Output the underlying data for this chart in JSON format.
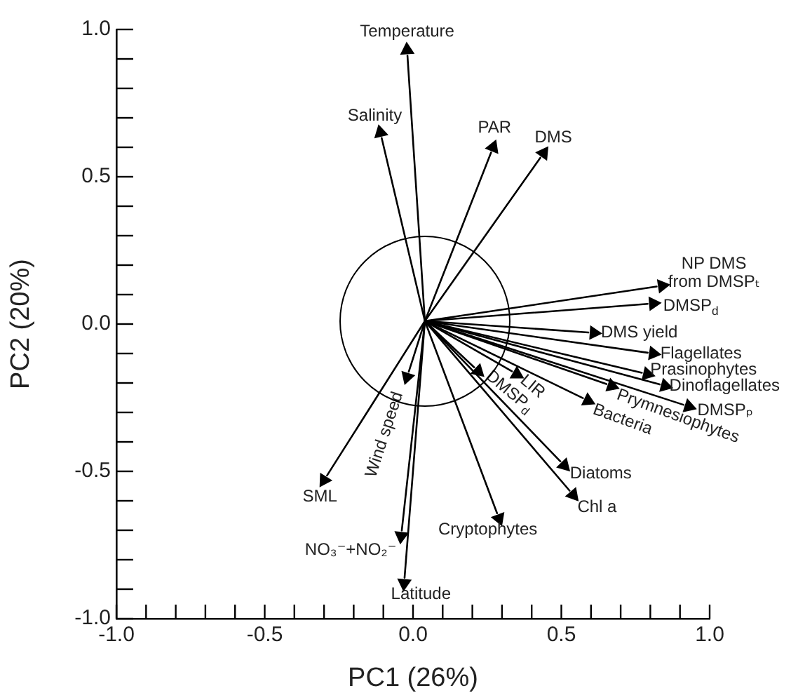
{
  "chart_data": {
    "type": "scatter",
    "xlabel": "PC1 (26%)",
    "ylabel": "PC2 (20%)",
    "xlim": [
      -1,
      1
    ],
    "ylim": [
      -1,
      1
    ],
    "xticks": [
      {
        "value": -1,
        "label": "-1.0"
      },
      {
        "value": -0.9,
        "label": null
      },
      {
        "value": -0.8,
        "label": null
      },
      {
        "value": -0.7,
        "label": null
      },
      {
        "value": -0.6,
        "label": null
      },
      {
        "value": -0.5,
        "label": "-0.5"
      },
      {
        "value": -0.4,
        "label": null
      },
      {
        "value": -0.3,
        "label": null
      },
      {
        "value": -0.2,
        "label": null
      },
      {
        "value": -0.1,
        "label": null
      },
      {
        "value": 0,
        "label": "0.0"
      },
      {
        "value": 0.1,
        "label": null
      },
      {
        "value": 0.2,
        "label": null
      },
      {
        "value": 0.3,
        "label": null
      },
      {
        "value": 0.4,
        "label": null
      },
      {
        "value": 0.5,
        "label": "0.5"
      },
      {
        "value": 0.6,
        "label": null
      },
      {
        "value": 0.7,
        "label": null
      },
      {
        "value": 0.8,
        "label": null
      },
      {
        "value": 0.9,
        "label": null
      },
      {
        "value": 1,
        "label": "1.0"
      }
    ],
    "yticks": [
      {
        "value": -1,
        "label": "-1.0"
      },
      {
        "value": -0.9,
        "label": null
      },
      {
        "value": -0.8,
        "label": null
      },
      {
        "value": -0.7,
        "label": null
      },
      {
        "value": -0.6,
        "label": null
      },
      {
        "value": -0.5,
        "label": "-0.5"
      },
      {
        "value": -0.4,
        "label": null
      },
      {
        "value": -0.3,
        "label": null
      },
      {
        "value": -0.2,
        "label": null
      },
      {
        "value": -0.1,
        "label": null
      },
      {
        "value": 0,
        "label": "0.0"
      },
      {
        "value": 0.1,
        "label": null
      },
      {
        "value": 0.2,
        "label": null
      },
      {
        "value": 0.3,
        "label": null
      },
      {
        "value": 0.4,
        "label": null
      },
      {
        "value": 0.5,
        "label": "0.5"
      },
      {
        "value": 0.6,
        "label": null
      },
      {
        "value": 0.7,
        "label": null
      },
      {
        "value": 0.8,
        "label": null
      },
      {
        "value": 0.9,
        "label": null
      },
      {
        "value": 1,
        "label": "1.0"
      }
    ],
    "marker": "triangle",
    "series": [
      {
        "name": "Temperature",
        "color": "#000000",
        "x": [
          -0.02
        ],
        "values": [
          0.93
        ]
      },
      {
        "name": "Salinity",
        "color": "#000000",
        "x": [
          -0.11
        ],
        "values": [
          0.65
        ]
      },
      {
        "name": "PAR",
        "color": "#000000",
        "x": [
          0.27
        ],
        "values": [
          0.6
        ]
      },
      {
        "name": "DMS",
        "color": "#000000",
        "x": [
          0.44
        ],
        "values": [
          0.58
        ]
      },
      {
        "name": "NP DMS\nfrom DMSPₜ",
        "color": "#000000",
        "x": [
          0.84
        ],
        "values": [
          0.13
        ]
      },
      {
        "name": "DMSP$_{d}$",
        "color": "#000000",
        "x": [
          0.81
        ],
        "values": [
          0.07
        ]
      },
      {
        "name": "DMS yield",
        "color": "#000000",
        "x": [
          0.61
        ],
        "values": [
          -0.03
        ]
      },
      {
        "name": "Flagellates",
        "color": "#000000",
        "x": [
          0.81
        ],
        "values": [
          -0.1
        ]
      },
      {
        "name": "Prasinophytes",
        "color": "#000000",
        "x": [
          0.79
        ],
        "values": [
          -0.17
        ]
      },
      {
        "name": "Dinoflagellates",
        "color": "#000000",
        "x": [
          0.85
        ],
        "values": [
          -0.21
        ]
      },
      {
        "name": "DMSPₚ",
        "color": "#000000",
        "x": [
          0.93
        ],
        "values": [
          -0.28
        ]
      },
      {
        "name": "Prymnesiophytes",
        "color": "#000000",
        "x": [
          0.67
        ],
        "values": [
          -0.21
        ]
      },
      {
        "name": "Bacteria",
        "color": "#000000",
        "x": [
          0.59
        ],
        "values": [
          -0.26
        ]
      },
      {
        "name": "LIR",
        "color": "#000000",
        "x": [
          0.35
        ],
        "values": [
          -0.17
        ]
      },
      {
        "name": "DMSP$_{d}$",
        "color": "#000000",
        "x": [
          0.22
        ],
        "values": [
          -0.16
        ]
      },
      {
        "name": "Wind speed",
        "color": "#000000",
        "x": [
          -0.02
        ],
        "values": [
          -0.18
        ]
      },
      {
        "name": "SML",
        "color": "#000000",
        "x": [
          -0.3
        ],
        "values": [
          -0.53
        ]
      },
      {
        "name": "NO₃⁻+NO₂⁻",
        "color": "#000000",
        "x": [
          -0.04
        ],
        "values": [
          -0.72
        ]
      },
      {
        "name": "Latitude",
        "color": "#000000",
        "x": [
          -0.03
        ],
        "values": [
          -0.88
        ]
      },
      {
        "name": "Cryptophytes",
        "color": "#000000",
        "x": [
          0.29
        ],
        "values": [
          -0.66
        ]
      },
      {
        "name": "Diatoms",
        "color": "#000000",
        "x": [
          0.51
        ],
        "values": [
          -0.48
        ]
      },
      {
        "name": "Chl a",
        "color": "#000000",
        "x": [
          0.54
        ],
        "values": [
          -0.58
        ]
      }
    ]
  }
}
